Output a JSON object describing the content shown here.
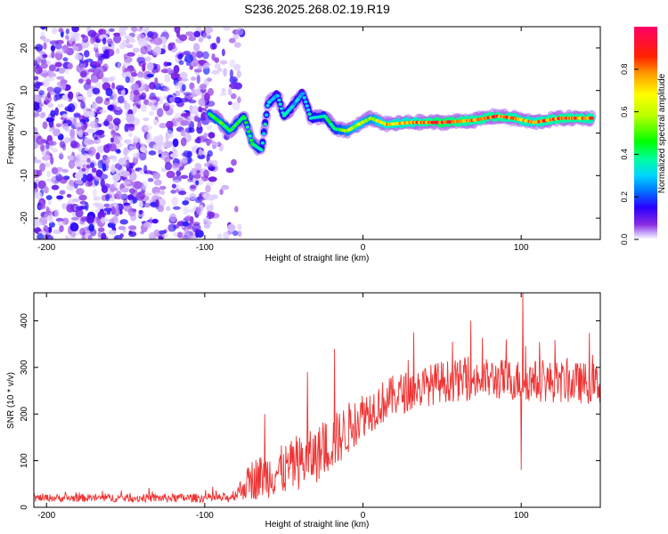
{
  "title": "S236.2025.268.02.19.R19",
  "chart_data": [
    {
      "type": "heatmap",
      "name": "spectrogram",
      "xlabel": "Height of straight line (km)",
      "ylabel": "Frequency (Hz)",
      "xlim": [
        -208,
        150
      ],
      "ylim": [
        -25,
        25
      ],
      "xticks": [
        -200,
        -100,
        0,
        100
      ],
      "yticks": [
        20,
        10,
        0,
        -10,
        -20
      ],
      "colorbar": {
        "label": "Normalized spectral amplitude",
        "range": [
          0,
          1
        ],
        "ticks": [
          0.0,
          0.2,
          0.4,
          0.6,
          0.8
        ]
      },
      "noise_region_x": [
        -208,
        -76
      ],
      "ridge": [
        {
          "x": -97,
          "f": 4.5,
          "a": 0.45
        },
        {
          "x": -90,
          "f": 2.5,
          "a": 0.5
        },
        {
          "x": -84,
          "f": 0.5,
          "a": 0.45
        },
        {
          "x": -75,
          "f": 4.0,
          "a": 0.4
        },
        {
          "x": -70,
          "f": -2.5,
          "a": 0.5
        },
        {
          "x": -64,
          "f": -4.0,
          "a": 0.35
        },
        {
          "x": -60,
          "f": 7.0,
          "a": 0.35
        },
        {
          "x": -54,
          "f": 9.0,
          "a": 0.3
        },
        {
          "x": -50,
          "f": 4.0,
          "a": 0.35
        },
        {
          "x": -44,
          "f": 6.5,
          "a": 0.3
        },
        {
          "x": -38,
          "f": 9.5,
          "a": 0.3
        },
        {
          "x": -33,
          "f": 3.5,
          "a": 0.35
        },
        {
          "x": -24,
          "f": 4.0,
          "a": 0.4
        },
        {
          "x": -18,
          "f": 1.0,
          "a": 0.4
        },
        {
          "x": -10,
          "f": 0.5,
          "a": 0.55
        },
        {
          "x": -3,
          "f": 2.0,
          "a": 0.65
        },
        {
          "x": 5,
          "f": 3.5,
          "a": 0.55
        },
        {
          "x": 15,
          "f": 2.0,
          "a": 0.75
        },
        {
          "x": 30,
          "f": 2.5,
          "a": 0.75
        },
        {
          "x": 50,
          "f": 2.5,
          "a": 0.9
        },
        {
          "x": 70,
          "f": 3.0,
          "a": 0.8
        },
        {
          "x": 85,
          "f": 4.0,
          "a": 0.85
        },
        {
          "x": 95,
          "f": 3.5,
          "a": 0.8
        },
        {
          "x": 108,
          "f": 2.5,
          "a": 0.75
        },
        {
          "x": 125,
          "f": 3.5,
          "a": 0.85
        },
        {
          "x": 145,
          "f": 3.5,
          "a": 0.8
        }
      ]
    },
    {
      "type": "line",
      "name": "snr",
      "xlabel": "Height of straight line (km)",
      "ylabel": "SNR (10 * v/v)",
      "xlim": [
        -208,
        150
      ],
      "ylim": [
        0,
        460
      ],
      "xticks": [
        -200,
        -100,
        0,
        100
      ],
      "yticks": [
        0,
        100,
        200,
        300,
        400
      ],
      "color": "#ee3333",
      "trend": [
        {
          "x": -208,
          "mean": 20,
          "spread": 8
        },
        {
          "x": -85,
          "mean": 20,
          "spread": 10
        },
        {
          "x": -80,
          "mean": 30,
          "spread": 15
        },
        {
          "x": -70,
          "mean": 60,
          "spread": 45
        },
        {
          "x": -50,
          "mean": 80,
          "spread": 55
        },
        {
          "x": -30,
          "mean": 110,
          "spread": 60
        },
        {
          "x": -15,
          "mean": 150,
          "spread": 60
        },
        {
          "x": 0,
          "mean": 200,
          "spread": 50
        },
        {
          "x": 20,
          "mean": 240,
          "spread": 45
        },
        {
          "x": 50,
          "mean": 270,
          "spread": 45
        },
        {
          "x": 80,
          "mean": 275,
          "spread": 45
        },
        {
          "x": 150,
          "mean": 265,
          "spread": 45
        }
      ],
      "spikes": [
        {
          "x": -62,
          "y": 200
        },
        {
          "x": -35,
          "y": 290
        },
        {
          "x": -18,
          "y": 340
        },
        {
          "x": 32,
          "y": 375
        },
        {
          "x": 68,
          "y": 400
        },
        {
          "x": 100,
          "y": 80
        },
        {
          "x": 101,
          "y": 460
        }
      ]
    }
  ]
}
